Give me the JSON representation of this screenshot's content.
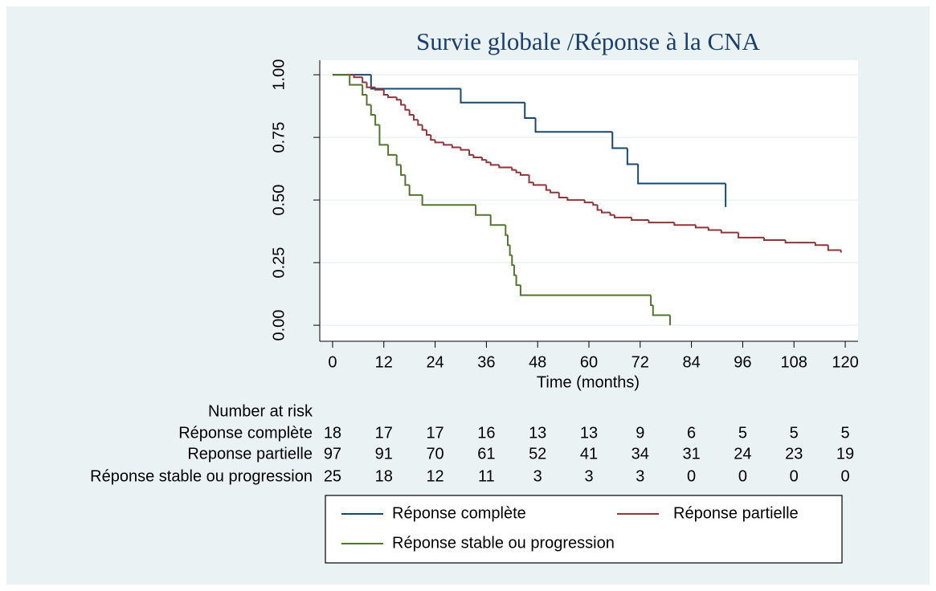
{
  "chart_data": {
    "type": "line",
    "drawstyle": "steps-post",
    "title": "Survie globale /Réponse à la CNA",
    "xlabel": "Time (months)",
    "xlim": [
      -3,
      123
    ],
    "ylim": [
      -0.064,
      1.058
    ],
    "xticks": [
      0,
      12,
      24,
      36,
      48,
      60,
      72,
      84,
      96,
      108,
      120
    ],
    "yticks": [
      {
        "value": 0,
        "label": "0.00"
      },
      {
        "value": 0.25,
        "label": "0.25"
      },
      {
        "value": 0.5,
        "label": "0.50"
      },
      {
        "value": 0.75,
        "label": "0.75"
      },
      {
        "value": 1,
        "label": "1.00"
      }
    ],
    "grid": true,
    "legend": "bottom",
    "series": [
      {
        "name": "Réponse complète",
        "color": "#1a476f",
        "x": [
          0,
          9,
          30,
          45,
          47.5,
          65.5,
          69,
          71.5,
          92
        ],
        "values": [
          1,
          0.944,
          0.889,
          0.827,
          0.772,
          0.707,
          0.643,
          0.566,
          0.472
        ]
      },
      {
        "name": "Réponse partielle",
        "color": "#90353b",
        "x": [
          0,
          5,
          7,
          8,
          10,
          12,
          13,
          15,
          16,
          17,
          18,
          19,
          20,
          21,
          22,
          23,
          24,
          26,
          28,
          30,
          32,
          33,
          35,
          36,
          37,
          39,
          42,
          43,
          44,
          46,
          47,
          50,
          51,
          53,
          55,
          59,
          61,
          62,
          63,
          65,
          66,
          70,
          74,
          80,
          85,
          88,
          91,
          95,
          101,
          106,
          113,
          116,
          119
        ],
        "values": [
          1,
          0.99,
          0.97,
          0.95,
          0.94,
          0.92,
          0.91,
          0.9,
          0.88,
          0.86,
          0.84,
          0.82,
          0.8,
          0.78,
          0.76,
          0.74,
          0.73,
          0.72,
          0.71,
          0.7,
          0.68,
          0.67,
          0.66,
          0.65,
          0.64,
          0.63,
          0.62,
          0.61,
          0.6,
          0.57,
          0.56,
          0.54,
          0.53,
          0.51,
          0.5,
          0.49,
          0.48,
          0.46,
          0.45,
          0.44,
          0.43,
          0.42,
          0.41,
          0.4,
          0.39,
          0.38,
          0.37,
          0.35,
          0.34,
          0.33,
          0.32,
          0.3,
          0.29
        ]
      },
      {
        "name": "Réponse stable ou progression",
        "color": "#55752f",
        "x": [
          0,
          4,
          7,
          8,
          9,
          10,
          11,
          13,
          15,
          16,
          17,
          18,
          21,
          33.5,
          37,
          40.5,
          41,
          41.5,
          42,
          42.5,
          43,
          44,
          74.5,
          75,
          79
        ],
        "values": [
          1,
          0.96,
          0.92,
          0.88,
          0.84,
          0.8,
          0.72,
          0.68,
          0.64,
          0.6,
          0.56,
          0.52,
          0.48,
          0.44,
          0.4,
          0.36,
          0.32,
          0.28,
          0.24,
          0.2,
          0.16,
          0.12,
          0.08,
          0.04,
          0
        ]
      }
    ],
    "risk_table": {
      "title": "Number at risk",
      "rows": [
        {
          "name": "Réponse complète",
          "values": [
            18,
            17,
            17,
            16,
            13,
            13,
            9,
            6,
            5,
            5,
            5
          ]
        },
        {
          "name": "Reponse partielle",
          "values": [
            97,
            91,
            70,
            61,
            52,
            41,
            34,
            31,
            24,
            23,
            19
          ]
        },
        {
          "name": "Réponse stable ou progression",
          "values": [
            25,
            18,
            12,
            11,
            3,
            3,
            3,
            0,
            0,
            0,
            0
          ]
        }
      ]
    }
  }
}
